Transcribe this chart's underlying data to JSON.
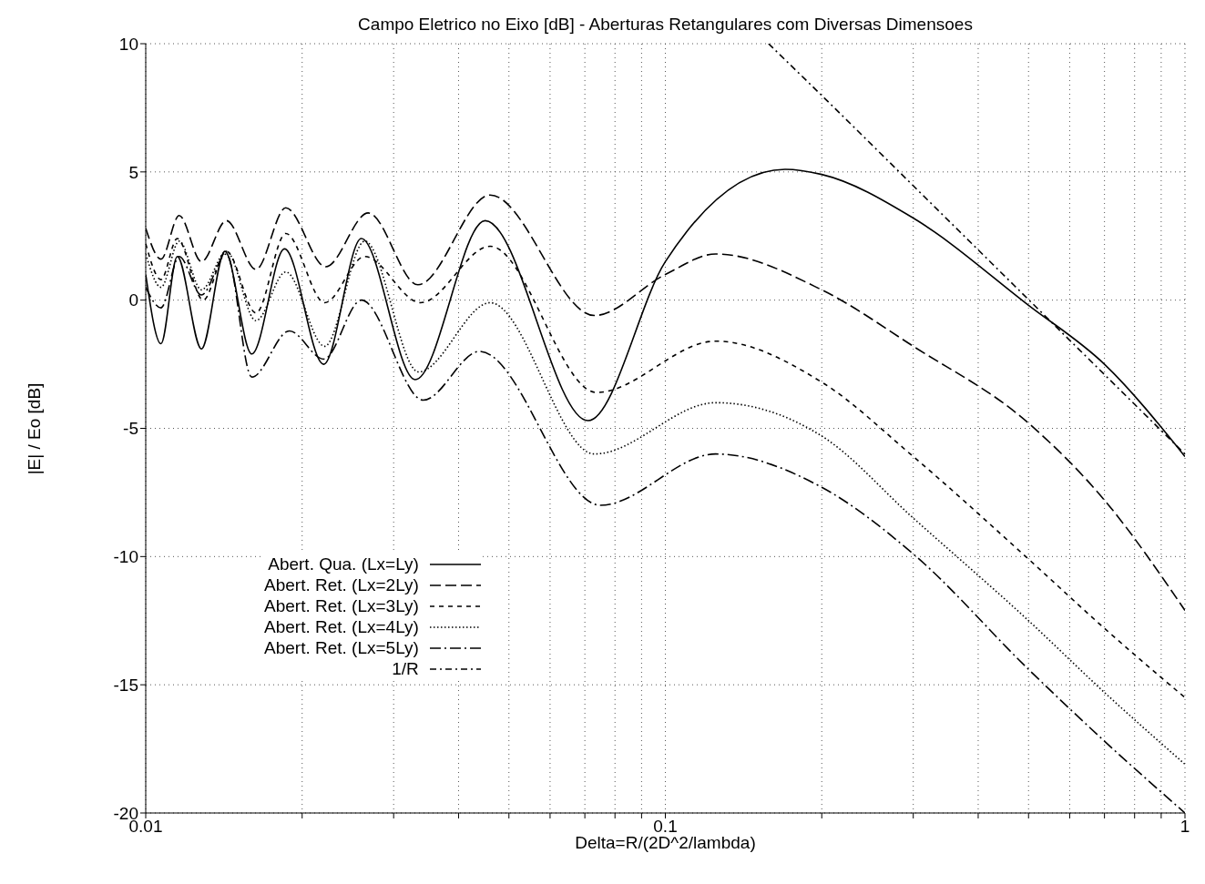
{
  "chart_data": {
    "type": "line",
    "title": "Campo Eletrico no Eixo [dB] - Aberturas Retangulares com Diversas Dimensoes",
    "xlabel": "Delta=R/(2D^2/lambda)",
    "ylabel": "|E| / Eo [dB]",
    "log": "x",
    "xlim": [
      0.01,
      1
    ],
    "xticks": [
      0.01,
      {
        "value": 0.02,
        "label": null
      },
      {
        "value": 0.03,
        "label": null
      },
      {
        "value": 0.04,
        "label": null
      },
      {
        "value": 0.05,
        "label": null
      },
      {
        "value": 0.06,
        "label": null
      },
      {
        "value": 0.07,
        "label": null
      },
      {
        "value": 0.08,
        "label": null
      },
      {
        "value": 0.09,
        "label": null
      },
      0.1,
      {
        "value": 0.2,
        "label": null
      },
      {
        "value": 0.3,
        "label": null
      },
      {
        "value": 0.4,
        "label": null
      },
      {
        "value": 0.5,
        "label": null
      },
      {
        "value": 0.6,
        "label": null
      },
      {
        "value": 0.7,
        "label": null
      },
      {
        "value": 0.8,
        "label": null
      },
      {
        "value": 0.9,
        "label": null
      },
      1
    ],
    "ylim": [
      -20,
      10
    ],
    "yticks": [
      -20,
      -15,
      -10,
      -5,
      0,
      5,
      10
    ],
    "grid": true,
    "legend": "bottom left",
    "marker": "none",
    "series": [
      {
        "name": "Abert. Qua. (Lx=Ly)",
        "color": "#000000",
        "line_style": "solid",
        "x": [
          0.01,
          0.0107,
          0.0115,
          0.0128,
          0.0142,
          0.016,
          0.0185,
          0.022,
          0.026,
          0.033,
          0.045,
          0.071,
          0.1,
          0.17,
          0.2,
          0.3,
          0.5,
          0.7,
          1
        ],
        "values": [
          1.0,
          -1.7,
          1.7,
          -1.9,
          1.9,
          -2.1,
          2.0,
          -2.5,
          2.4,
          -3.1,
          3.1,
          -4.7,
          1.5,
          5.1,
          4.9,
          3.2,
          -0.2,
          -2.5,
          -6.1
        ]
      },
      {
        "name": "Abert. Ret. (Lx=2Ly)",
        "color": "#000000",
        "line_style": "dashed",
        "x": [
          0.01,
          0.0107,
          0.0116,
          0.0128,
          0.0143,
          0.0163,
          0.0186,
          0.0222,
          0.0268,
          0.0334,
          0.046,
          0.073,
          0.1,
          0.125,
          0.2,
          0.3,
          0.5,
          0.7,
          1
        ],
        "values": [
          2.8,
          1.6,
          3.3,
          1.5,
          3.1,
          1.2,
          3.6,
          1.3,
          3.4,
          0.6,
          4.1,
          -0.6,
          1.0,
          1.8,
          0.4,
          -1.8,
          -4.8,
          -7.8,
          -12.1
        ]
      },
      {
        "name": "Abert. Ret. (Lx=3Ly)",
        "color": "#000000",
        "line_style": "dashed",
        "x": [
          0.01,
          0.0107,
          0.0115,
          0.0129,
          0.0143,
          0.0163,
          0.0186,
          0.0221,
          0.0264,
          0.0338,
          0.046,
          0.0737,
          0.125,
          0.2,
          0.3,
          0.5,
          0.7,
          1
        ],
        "values": [
          2.2,
          0.8,
          2.4,
          0.0,
          1.9,
          -0.5,
          2.6,
          -0.1,
          1.7,
          -0.1,
          2.1,
          -3.6,
          -1.6,
          -3.2,
          -6.1,
          -10.1,
          -12.8,
          -15.5
        ]
      },
      {
        "name": "Abert. Ret. (Lx=4Ly)",
        "color": "#000000",
        "line_style": "dotted",
        "x": [
          0.01,
          0.0107,
          0.0116,
          0.0128,
          0.0143,
          0.0163,
          0.0186,
          0.0221,
          0.0264,
          0.0335,
          0.046,
          0.073,
          0.125,
          0.2,
          0.3,
          0.5,
          0.7,
          1
        ],
        "values": [
          1.8,
          0.5,
          2.3,
          0.4,
          1.9,
          -0.8,
          1.1,
          -1.8,
          2.3,
          -2.8,
          -0.1,
          -6.0,
          -4.0,
          -5.3,
          -8.5,
          -12.5,
          -15.3,
          -18.1
        ]
      },
      {
        "name": "Abert. Ret. (Lx=5Ly)",
        "color": "#000000",
        "line_style": "dashed",
        "x": [
          0.01,
          0.0107,
          0.0116,
          0.0128,
          0.0143,
          0.016,
          0.0189,
          0.022,
          0.026,
          0.0342,
          0.0439,
          0.075,
          0.125,
          0.2,
          0.3,
          0.5,
          0.7,
          1
        ],
        "values": [
          0.5,
          -0.3,
          1.7,
          0.2,
          1.8,
          -3.0,
          -1.2,
          -2.3,
          0.0,
          -3.9,
          -2.0,
          -8.0,
          -6.0,
          -7.3,
          -9.9,
          -14.4,
          -17.2,
          -20.0
        ]
      },
      {
        "name": "1/R",
        "color": "#000000",
        "line_style": "dashed",
        "x": [
          0.158,
          0.2,
          0.3,
          0.5,
          1
        ],
        "values": [
          10.0,
          7.98,
          4.46,
          0.02,
          -6.0
        ]
      }
    ]
  }
}
